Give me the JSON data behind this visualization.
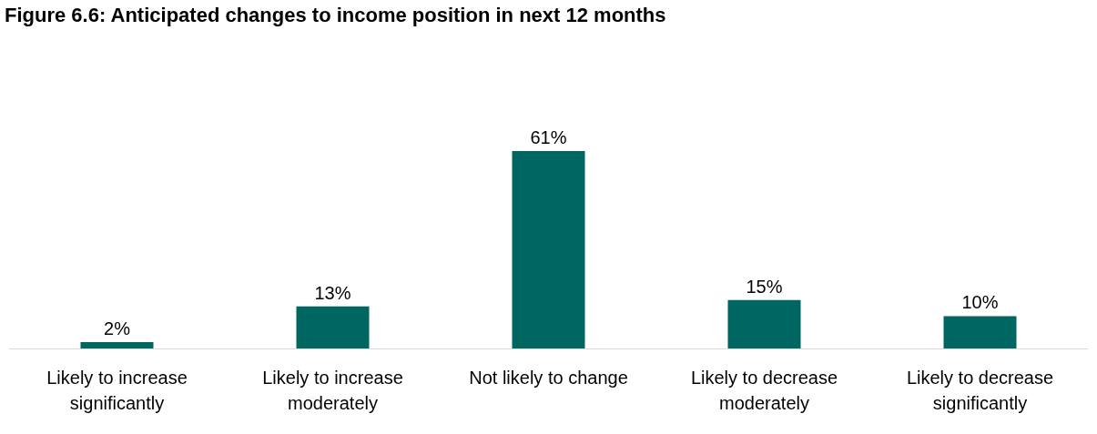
{
  "chart_data": {
    "type": "bar",
    "title": "Figure 6.6: Anticipated changes to income position in next 12 months",
    "categories": [
      "Likely to increase significantly",
      "Likely to increase moderately",
      "Not likely to change",
      "Likely to decrease moderately",
      "Likely to decrease significantly"
    ],
    "values": [
      2,
      13,
      61,
      15,
      10
    ],
    "value_labels": [
      "2%",
      "13%",
      "61%",
      "15%",
      "10%"
    ],
    "color": "#006661"
  }
}
